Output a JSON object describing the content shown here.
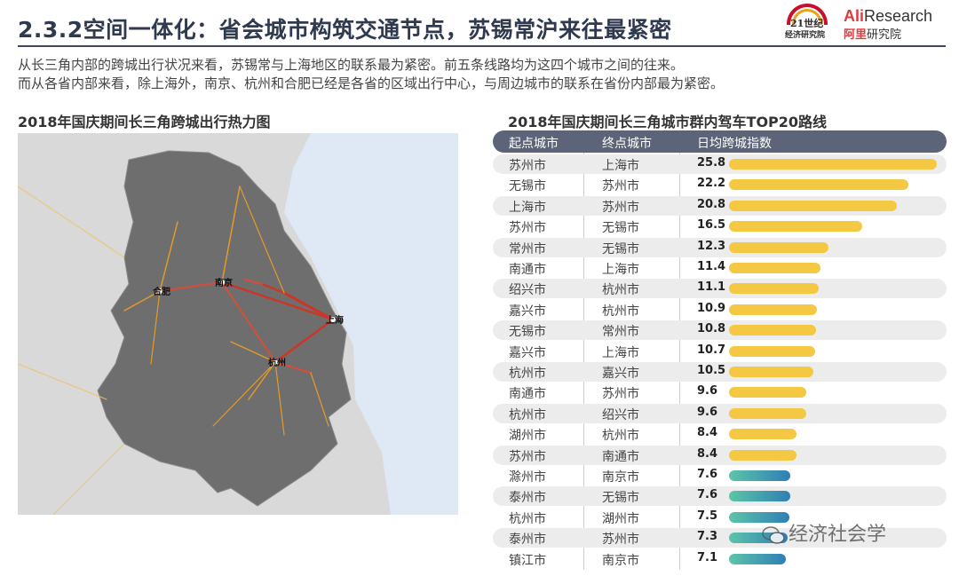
{
  "header": {
    "title": "2.3.2空间一体化：省会城市构筑交通节点，苏锡常沪来往最紧密",
    "logo_21_line1": "21世纪",
    "logo_21_line2": "经济研究院",
    "logo_ali_en_a": "Ali",
    "logo_ali_en_b": "Research",
    "logo_ali_cn_a": "阿里",
    "logo_ali_cn_b": "研究院"
  },
  "intro": {
    "line1": "从长三角内部的跨城出行状况来看，苏锡常与上海地区的联系最为紧密。前五条线路均为这四个城市之间的往来。",
    "line2": "而从各省内部来看，除上海外，南京、杭州和合肥已经是各省的区域出行中心，与周边城市的联系在省份内部最为紧密。"
  },
  "map": {
    "title": "2018年国庆期间长三角跨城出行热力图",
    "labels": {
      "nanjing": "南京",
      "hefei": "合肥",
      "shanghai": "上海",
      "hangzhou": "杭州"
    },
    "colors": {
      "land": "#6e6e6e",
      "sea": "#dfe9f5",
      "outside": "#d9d9d9",
      "heat_hot": "#d7301f",
      "heat_warm": "#f0a020"
    }
  },
  "chart_data": {
    "type": "table",
    "title": "2018年国庆期间长三角城市群内驾车TOP20路线",
    "columns": [
      "起点城市",
      "终点城市",
      "日均跨城指数"
    ],
    "rows": [
      {
        "from": "苏州市",
        "to": "上海市",
        "value": 25.8,
        "label": "25.8"
      },
      {
        "from": "无锡市",
        "to": "苏州市",
        "value": 22.2,
        "label": "22.2"
      },
      {
        "from": "上海市",
        "to": "苏州市",
        "value": 20.8,
        "label": "20.8"
      },
      {
        "from": "苏州市",
        "to": "无锡市",
        "value": 16.5,
        "label": "16.5"
      },
      {
        "from": "常州市",
        "to": "无锡市",
        "value": 12.3,
        "label": "12.3"
      },
      {
        "from": "南通市",
        "to": "上海市",
        "value": 11.4,
        "label": "11.4"
      },
      {
        "from": "绍兴市",
        "to": "杭州市",
        "value": 11.1,
        "label": "11.1"
      },
      {
        "from": "嘉兴市",
        "to": "杭州市",
        "value": 10.9,
        "label": "10.9"
      },
      {
        "from": "无锡市",
        "to": "常州市",
        "value": 10.8,
        "label": "10.8"
      },
      {
        "from": "嘉兴市",
        "to": "上海市",
        "value": 10.7,
        "label": "10.7"
      },
      {
        "from": "杭州市",
        "to": "嘉兴市",
        "value": 10.5,
        "label": "10.5"
      },
      {
        "from": "南通市",
        "to": "苏州市",
        "value": 9.6,
        "label": "9.6"
      },
      {
        "from": "杭州市",
        "to": "绍兴市",
        "value": 9.6,
        "label": "9.6"
      },
      {
        "from": "湖州市",
        "to": "杭州市",
        "value": 8.4,
        "label": "8.4"
      },
      {
        "from": "苏州市",
        "to": "南通市",
        "value": 8.4,
        "label": "8.4"
      },
      {
        "from": "滁州市",
        "to": "南京市",
        "value": 7.6,
        "label": "7.6"
      },
      {
        "from": "泰州市",
        "to": "无锡市",
        "value": 7.6,
        "label": "7.6"
      },
      {
        "from": "杭州市",
        "to": "湖州市",
        "value": 7.5,
        "label": "7.5"
      },
      {
        "from": "泰州市",
        "to": "苏州市",
        "value": 7.3,
        "label": "7.3"
      },
      {
        "from": "镇江市",
        "to": "南京市",
        "value": 7.1,
        "label": "7.1"
      }
    ],
    "xlim": [
      0,
      26
    ],
    "colors": {
      "high": "#f4c842",
      "low_start": "#5cc5a8",
      "low_end": "#2f7fb5",
      "header": "#5b6478"
    }
  },
  "watermark": {
    "text": "经济社会学"
  }
}
